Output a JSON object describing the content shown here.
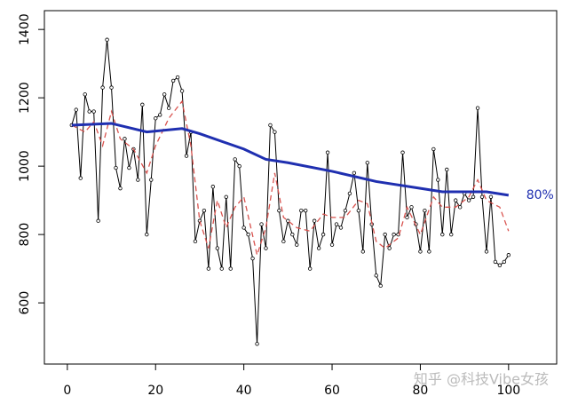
{
  "chart_data": {
    "type": "line",
    "xlim": [
      -5.2,
      110.9
    ],
    "ylim": [
      421,
      1455
    ],
    "xticks": [
      0,
      20,
      40,
      60,
      80,
      100
    ],
    "yticks": [
      600,
      800,
      1000,
      1200,
      1400
    ],
    "series": [
      {
        "color": "#000000",
        "points": true,
        "dashed": false,
        "width": 1,
        "x": [
          1,
          2,
          3,
          4,
          5,
          6,
          7,
          8,
          9,
          10,
          11,
          12,
          13,
          14,
          15,
          16,
          17,
          18,
          19,
          20,
          21,
          22,
          23,
          24,
          25,
          26,
          27,
          28,
          29,
          30,
          31,
          32,
          33,
          34,
          35,
          36,
          37,
          38,
          39,
          40,
          41,
          42,
          43,
          44,
          45,
          46,
          47,
          48,
          49,
          50,
          51,
          52,
          53,
          54,
          55,
          56,
          57,
          58,
          59,
          60,
          61,
          62,
          63,
          64,
          65,
          66,
          67,
          68,
          69,
          70,
          71,
          72,
          73,
          74,
          75,
          76,
          77,
          78,
          79,
          80,
          81,
          82,
          83,
          84,
          85,
          86,
          87,
          88,
          89,
          90,
          91,
          92,
          93,
          94,
          95,
          96,
          97,
          98,
          99,
          100
        ],
        "values": [
          1120,
          1165,
          965,
          1210,
          1160,
          1160,
          840,
          1230,
          1370,
          1230,
          995,
          935,
          1080,
          995,
          1050,
          960,
          1180,
          800,
          960,
          1140,
          1150,
          1210,
          1170,
          1250,
          1260,
          1220,
          1030,
          1100,
          780,
          840,
          870,
          700,
          940,
          760,
          700,
          910,
          700,
          1020,
          1000,
          820,
          800,
          730,
          480,
          830,
          760,
          1120,
          1100,
          870,
          780,
          840,
          800,
          770,
          870,
          870,
          700,
          840,
          760,
          800,
          1040,
          770,
          830,
          820,
          870,
          920,
          980,
          870,
          750,
          1010,
          830,
          680,
          650,
          800,
          760,
          800,
          800,
          1040,
          850,
          880,
          830,
          750,
          870,
          750,
          1050,
          960,
          800,
          990,
          800,
          900,
          880,
          920,
          900,
          910,
          1170,
          910,
          750,
          910,
          720,
          710,
          720,
          740
        ]
      },
      {
        "color": "#d9534f",
        "points": false,
        "dashed": true,
        "width": 1.3,
        "x": [
          1,
          4,
          6,
          8,
          10,
          12,
          15,
          18,
          20,
          23,
          26,
          28,
          30,
          32,
          34,
          36,
          38,
          40,
          43,
          45,
          47,
          49,
          52,
          55,
          58,
          60,
          63,
          66,
          68,
          70,
          72,
          75,
          77,
          80,
          83,
          85,
          88,
          91,
          93,
          95,
          98,
          100
        ],
        "values": [
          1120,
          1100,
          1130,
          1060,
          1160,
          1080,
          1050,
          980,
          1060,
          1140,
          1190,
          1060,
          840,
          760,
          900,
          820,
          880,
          910,
          740,
          820,
          980,
          850,
          820,
          810,
          860,
          850,
          850,
          900,
          890,
          780,
          760,
          790,
          880,
          800,
          910,
          880,
          880,
          910,
          960,
          900,
          880,
          810
        ]
      },
      {
        "color": "#1f2fb0",
        "points": false,
        "dashed": false,
        "width": 3,
        "x": [
          1,
          10,
          18,
          26,
          30,
          40,
          45,
          50,
          60,
          70,
          80,
          85,
          90,
          95,
          100
        ],
        "values": [
          1120,
          1125,
          1100,
          1110,
          1095,
          1050,
          1020,
          1010,
          985,
          955,
          935,
          925,
          925,
          925,
          915
        ]
      }
    ],
    "annotation": {
      "text": "80%",
      "x": 104,
      "y": 915,
      "color": "#1f2fb0"
    },
    "watermark": "知乎 @科技Vibe女孩"
  }
}
